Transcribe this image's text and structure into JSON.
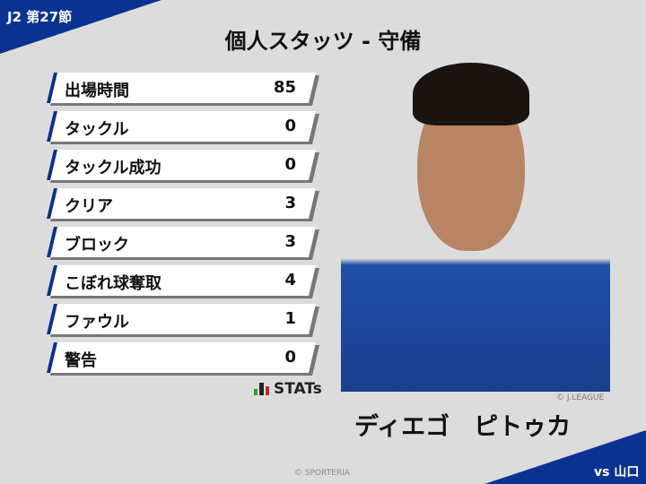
{
  "header": {
    "round": "J2 第27節",
    "title": "個人スタッツ - 守備"
  },
  "stats": [
    {
      "label": "出場時間",
      "value": "85"
    },
    {
      "label": "タックル",
      "value": "0"
    },
    {
      "label": "タックル成功",
      "value": "0"
    },
    {
      "label": "クリア",
      "value": "3"
    },
    {
      "label": "ブロック",
      "value": "3"
    },
    {
      "label": "こぼれ球奪取",
      "value": "4"
    },
    {
      "label": "ファウル",
      "value": "1"
    },
    {
      "label": "警告",
      "value": "0"
    }
  ],
  "logo": {
    "text": "STATs"
  },
  "player": {
    "name": "ディエゴ　ピトゥカ",
    "credit": "© J.LEAGUE"
  },
  "footer": {
    "credit": "© SPORTERIA",
    "opponent": "vs 山口"
  },
  "colors": {
    "accent": "#0a2f8f",
    "background": "#dcdcdc"
  }
}
